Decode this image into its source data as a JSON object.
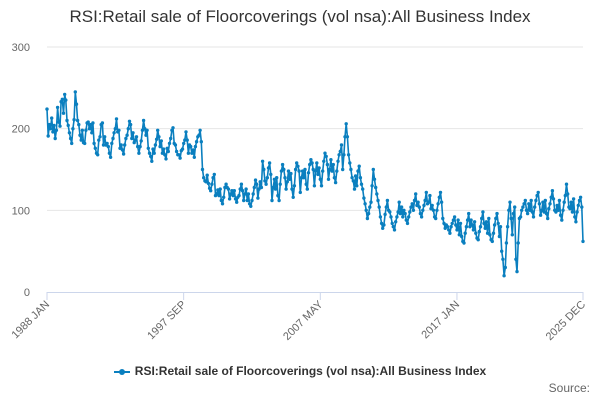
{
  "colors": {
    "series": "#0a7fbf",
    "grid": "#e6e6e6",
    "axis": "#ccd6eb",
    "text": "#666666"
  },
  "source_label": "Source:",
  "chart_data": {
    "type": "line",
    "title": "RSI:Retail sale of Floorcoverings (vol nsa):All Business Index",
    "xlabel": "",
    "ylabel": "",
    "ylim": [
      0,
      300
    ],
    "y_ticks": [
      0,
      100,
      200,
      300
    ],
    "grid": true,
    "legend_position": "bottom",
    "x_range": [
      "1988 JAN",
      "2025 DEC"
    ],
    "x_ticks": [
      "1988 JAN",
      "1997 SEP",
      "2007 MAY",
      "2017 JAN",
      "2025 DEC"
    ],
    "series": [
      {
        "name": "RSI:Retail sale of Floorcoverings (vol nsa):All Business Index",
        "frequency": "monthly",
        "start": "1988 JAN",
        "values": [
          224,
          191,
          205,
          200,
          213,
          196,
          204,
          188,
          198,
          226,
          208,
          203,
          233,
          236,
          219,
          242,
          235,
          210,
          204,
          195,
          188,
          182,
          200,
          211,
          245,
          230,
          210,
          205,
          192,
          186,
          198,
          183,
          182,
          198,
          207,
          208,
          200,
          205,
          195,
          207,
          182,
          176,
          170,
          168,
          186,
          190,
          205,
          207,
          180,
          190,
          180,
          182,
          178,
          170,
          165,
          182,
          188,
          195,
          200,
          212,
          196,
          198,
          176,
          180,
          174,
          169,
          180,
          188,
          192,
          200,
          209,
          205,
          188,
          195,
          183,
          186,
          190,
          178,
          170,
          178,
          185,
          198,
          210,
          200,
          192,
          198,
          176,
          170,
          166,
          160,
          175,
          170,
          180,
          187,
          198,
          190,
          178,
          185,
          170,
          175,
          168,
          163,
          176,
          172,
          182,
          188,
          198,
          201,
          182,
          180,
          172,
          168,
          168,
          164,
          173,
          175,
          182,
          186,
          196,
          186,
          170,
          180,
          178,
          170,
          174,
          165,
          178,
          184,
          190,
          192,
          198,
          184,
          150,
          140,
          136,
          135,
          143,
          133,
          127,
          124,
          132,
          140,
          144,
          118,
          120,
          125,
          118,
          126,
          112,
          108,
          116,
          128,
          132,
          128,
          126,
          114,
          120,
          124,
          118,
          124,
          114,
          110,
          116,
          118,
          126,
          132,
          124,
          112,
          120,
          126,
          112,
          120,
          108,
          105,
          112,
          120,
          128,
          137,
          132,
          115,
          126,
          135,
          128,
          160,
          150,
          136,
          132,
          140,
          152,
          158,
          144,
          112,
          128,
          138,
          126,
          140,
          118,
          112,
          132,
          148,
          156,
          150,
          140,
          126,
          135,
          148,
          138,
          145,
          126,
          116,
          130,
          150,
          158,
          154,
          148,
          122,
          140,
          148,
          140,
          150,
          132,
          126,
          146,
          156,
          162,
          158,
          150,
          130,
          148,
          158,
          144,
          152,
          138,
          130,
          148,
          160,
          170,
          166,
          156,
          138,
          150,
          162,
          148,
          156,
          140,
          134,
          148,
          160,
          168,
          172,
          180,
          150,
          168,
          190,
          206,
          190,
          168,
          158,
          150,
          140,
          136,
          126,
          142,
          130,
          148,
          154,
          140,
          132,
          126,
          115,
          108,
          100,
          90,
          96,
          104,
          110,
          130,
          150,
          138,
          128,
          120,
          112,
          104,
          92,
          84,
          78,
          82,
          95,
          104,
          112,
          100,
          98,
          92,
          84,
          80,
          76,
          86,
          92,
          98,
          110,
          96,
          104,
          92,
          100,
          96,
          88,
          84,
          92,
          98,
          104,
          108,
          100,
          112,
          120,
          106,
          110,
          104,
          96,
          92,
          100,
          106,
          112,
          122,
          108,
          110,
          118,
          102,
          106,
          100,
          92,
          90,
          100,
          108,
          116,
          122,
          110,
          90,
          84,
          78,
          82,
          80,
          76,
          72,
          80,
          84,
          88,
          92,
          82,
          76,
          88,
          70,
          84,
          68,
          62,
          60,
          72,
          80,
          88,
          96,
          80,
          88,
          82,
          76,
          86,
          72,
          66,
          64,
          74,
          80,
          90,
          98,
          84,
          78,
          86,
          72,
          90,
          70,
          64,
          62,
          72,
          82,
          90,
          96,
          84,
          68,
          80,
          50,
          40,
          20,
          30,
          60,
          80,
          100,
          110,
          90,
          70,
          96,
          104,
          40,
          25,
          60,
          90,
          92,
          100,
          104,
          108,
          112,
          100,
          96,
          108,
          100,
          112,
          98,
          92,
          104,
          112,
          118,
          122,
          108,
          94,
          100,
          110,
          98,
          112,
          96,
          90,
          102,
          108,
          116,
          124,
          114,
          100,
          98,
          106,
          100,
          112,
          94,
          88,
          100,
          110,
          118,
          132,
          120,
          104,
          102,
          110,
          98,
          114,
          92,
          86,
          98,
          106,
          112,
          116,
          104,
          62
        ]
      }
    ]
  }
}
